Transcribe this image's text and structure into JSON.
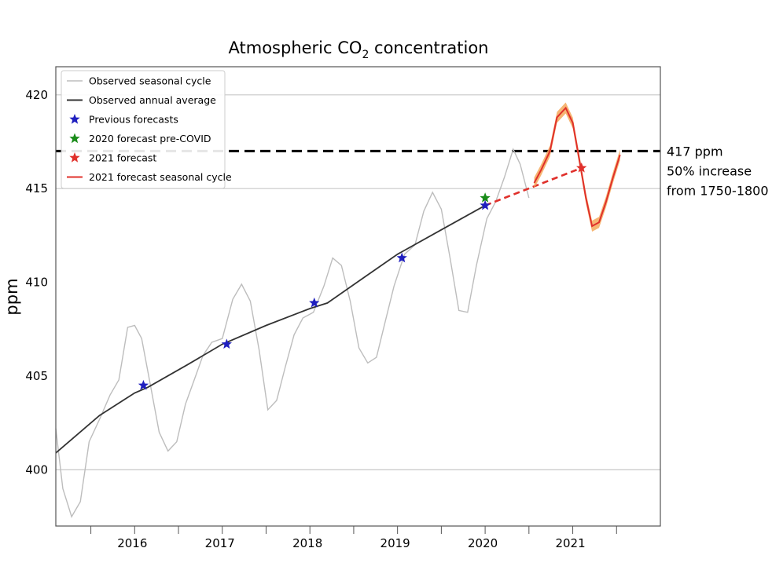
{
  "chart_data": {
    "type": "line",
    "title": "Atmospheric CO",
    "title_subscript": "2",
    "title_suffix": " concentration",
    "xlabel": "",
    "ylabel": "ppm",
    "xlim": [
      2015.1,
      2022.0
    ],
    "ylim": [
      397.0,
      421.5
    ],
    "x_ticks": [
      2016,
      2017,
      2018,
      2019,
      2020,
      2021
    ],
    "x_tick_labels": [
      "2016",
      "2017",
      "2018",
      "2019",
      "2020",
      "2021"
    ],
    "y_ticks": [
      400,
      405,
      410,
      415,
      420
    ],
    "y_tick_labels": [
      "400",
      "405",
      "410",
      "415",
      "420"
    ],
    "grid_y_lines": [
      400,
      415,
      420
    ],
    "legend_position": "top-left",
    "series": [
      {
        "name": "Observed seasonal cycle",
        "color": "#bdbdbd",
        "style": "line",
        "x": [
          2015.1,
          2015.18,
          2015.28,
          2015.38,
          2015.48,
          2015.6,
          2015.72,
          2015.82,
          2015.92,
          2016.0,
          2016.08,
          2016.18,
          2016.28,
          2016.38,
          2016.48,
          2016.58,
          2016.68,
          2016.78,
          2016.88,
          2017.0,
          2017.12,
          2017.22,
          2017.32,
          2017.42,
          2017.52,
          2017.62,
          2017.72,
          2017.82,
          2017.92,
          2018.04,
          2018.16,
          2018.26,
          2018.36,
          2018.46,
          2018.56,
          2018.66,
          2018.76,
          2018.86,
          2018.96,
          2019.08,
          2019.2,
          2019.3,
          2019.4,
          2019.5,
          2019.6,
          2019.7,
          2019.8,
          2019.9,
          2020.02,
          2020.12,
          2020.22,
          2020.32,
          2020.4,
          2020.5
        ],
        "y": [
          402.2,
          399.0,
          397.5,
          398.3,
          401.5,
          402.7,
          404.0,
          404.8,
          407.6,
          407.7,
          407.0,
          404.5,
          402.0,
          401.0,
          401.5,
          403.5,
          404.8,
          406.1,
          406.8,
          407.0,
          409.1,
          409.9,
          409.0,
          406.4,
          403.2,
          403.7,
          405.5,
          407.2,
          408.1,
          408.4,
          409.8,
          411.3,
          410.9,
          409.0,
          406.5,
          405.7,
          406.0,
          407.9,
          409.8,
          411.5,
          412.0,
          413.8,
          414.8,
          413.9,
          411.3,
          408.5,
          408.4,
          410.9,
          413.4,
          414.3,
          415.6,
          417.1,
          416.3,
          414.5
        ]
      },
      {
        "name": "Observed annual average",
        "color": "#333333",
        "style": "line",
        "x": [
          2015.1,
          2015.6,
          2016.0,
          2016.15,
          2016.6,
          2017.0,
          2017.5,
          2018.0,
          2018.2,
          2018.6,
          2019.0,
          2019.5,
          2020.0
        ],
        "y": [
          400.9,
          402.9,
          404.1,
          404.4,
          405.6,
          406.7,
          407.7,
          408.6,
          408.9,
          410.2,
          411.5,
          412.8,
          414.1
        ]
      },
      {
        "name": "Previous forecasts",
        "color": "#1f1fbf",
        "style": "star",
        "x": [
          2016.1,
          2017.05,
          2018.05,
          2019.05,
          2020.0
        ],
        "y": [
          404.5,
          406.7,
          408.9,
          411.3,
          414.1
        ]
      },
      {
        "name": "2020 forecast pre-COVID",
        "color": "#1a8c1a",
        "style": "star",
        "x": [
          2020.0
        ],
        "y": [
          414.5
        ]
      },
      {
        "name": "2021 forecast",
        "color": "#e0302b",
        "style": "star",
        "x": [
          2021.1
        ],
        "y": [
          416.1
        ]
      },
      {
        "name": "2021 forecast seasonal cycle",
        "color": "#e0302b",
        "band_color": "#f5a85a",
        "style": "line",
        "x": [
          2020.56,
          2020.64,
          2020.74,
          2020.82,
          2020.92,
          2021.0,
          2021.08,
          2021.15,
          2021.22,
          2021.3,
          2021.38,
          2021.46,
          2021.54
        ],
        "y": [
          415.3,
          416.0,
          417.0,
          418.8,
          419.3,
          418.5,
          416.4,
          414.5,
          413.0,
          413.2,
          414.3,
          415.6,
          416.8
        ]
      }
    ],
    "forecast_trend": {
      "color": "#e0302b",
      "x": [
        2020.0,
        2021.1
      ],
      "y": [
        414.1,
        416.1
      ]
    },
    "reference_line": {
      "y": 417,
      "color": "#000000",
      "labels": [
        "417 ppm",
        "50% increase",
        "from 1750-1800"
      ]
    }
  }
}
